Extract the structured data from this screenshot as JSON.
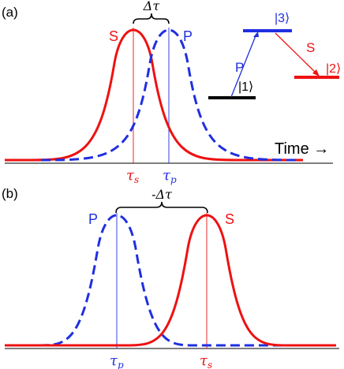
{
  "panel_a": {
    "label": "(a)",
    "delta_label": "Δτ",
    "s_label": "S",
    "p_label": "P",
    "tau_s": "τ",
    "tau_s_sub": "s",
    "tau_p": "τ",
    "tau_p_sub": "p",
    "time_label": "Time →",
    "levels": {
      "level1": "|1⟩",
      "level2": "|2⟩",
      "level3": "|3⟩",
      "p_transition": "P",
      "s_transition": "S"
    }
  },
  "panel_b": {
    "label": "(b)",
    "delta_label": "-Δτ",
    "s_label": "S",
    "p_label": "P",
    "tau_s": "τ",
    "tau_s_sub": "s",
    "tau_p": "τ",
    "tau_p_sub": "p"
  },
  "colors": {
    "stokes": "#ee1111",
    "pump": "#1f2fe0",
    "axis": "#555555",
    "level1": "#000000"
  }
}
